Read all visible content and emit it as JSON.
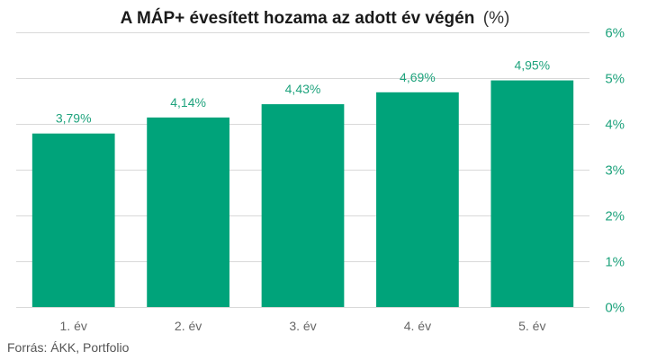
{
  "chart_data": {
    "type": "bar",
    "title": "A MÁP+ évesített hozama az adott év végén",
    "title_unit": "(%)",
    "categories": [
      "1. év",
      "2. év",
      "3. év",
      "4. év",
      "5. év"
    ],
    "values": [
      3.79,
      4.14,
      4.43,
      4.69,
      4.95
    ],
    "data_labels": [
      "3,79%",
      "4,14%",
      "4,43%",
      "4,69%",
      "4,95%"
    ],
    "xlabel": "",
    "ylabel": "",
    "ylim": [
      0,
      6
    ],
    "yticks": [
      0,
      1,
      2,
      3,
      4,
      5,
      6
    ],
    "ytick_labels": [
      "0%",
      "1%",
      "2%",
      "3%",
      "4%",
      "5%",
      "6%"
    ],
    "y_axis_side": "right",
    "grid": true,
    "legend": "none",
    "colors": {
      "bar": "#00a37a",
      "label": "#1fa37d",
      "grid": "#d9d9d9"
    }
  },
  "source": "Forrás: ÁKK, Portfolio"
}
